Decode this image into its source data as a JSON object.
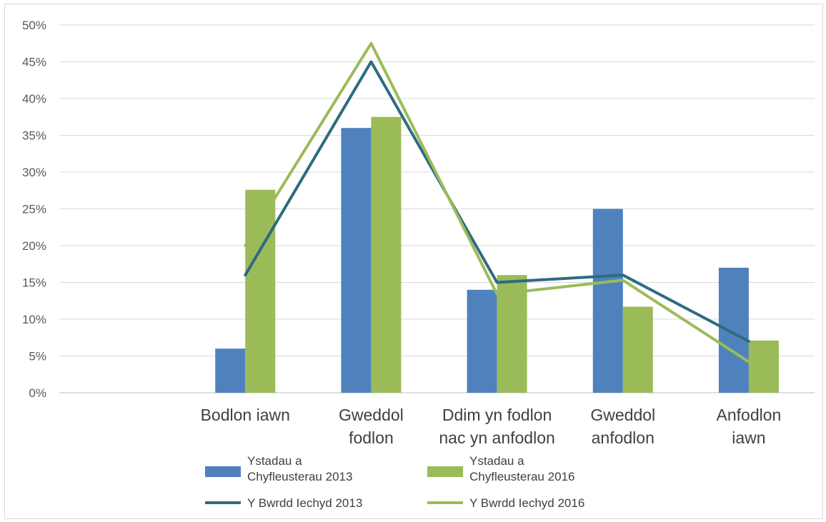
{
  "chart_data": {
    "type": "bar",
    "categories": [
      [
        "Bodlon iawn"
      ],
      [
        "Gweddol",
        "fodlon"
      ],
      [
        "Ddim yn fodlon",
        "nac yn anfodlon"
      ],
      [
        "Gweddol",
        "anfodlon"
      ],
      [
        "Anfodlon",
        "iawn"
      ]
    ],
    "y_ticks": [
      "0%",
      "5%",
      "10%",
      "15%",
      "20%",
      "25%",
      "30%",
      "35%",
      "40%",
      "45%",
      "50%"
    ],
    "ylim": [
      0,
      50
    ],
    "grid": true,
    "legend_position": "bottom",
    "bar_series": [
      {
        "name_lines": [
          "Ystadau a",
          "Chyfleusterau 2013"
        ],
        "color": "#4f81bd",
        "values": [
          6,
          36,
          14,
          25,
          17
        ]
      },
      {
        "name_lines": [
          "Ystadau a",
          "Chyfleusterau 2016"
        ],
        "color": "#9bbb59",
        "values": [
          27.6,
          37.5,
          16,
          11.7,
          7.1
        ]
      }
    ],
    "line_series": [
      {
        "name": "Y Bwrdd Iechyd 2013",
        "color": "#2e6b80",
        "values": [
          16,
          45,
          15,
          16,
          7
        ]
      },
      {
        "name": "Y Bwrdd Iechyd 2016",
        "color": "#9bbb59",
        "values": [
          20,
          47.5,
          13.4,
          15.3,
          4.2
        ]
      }
    ]
  }
}
